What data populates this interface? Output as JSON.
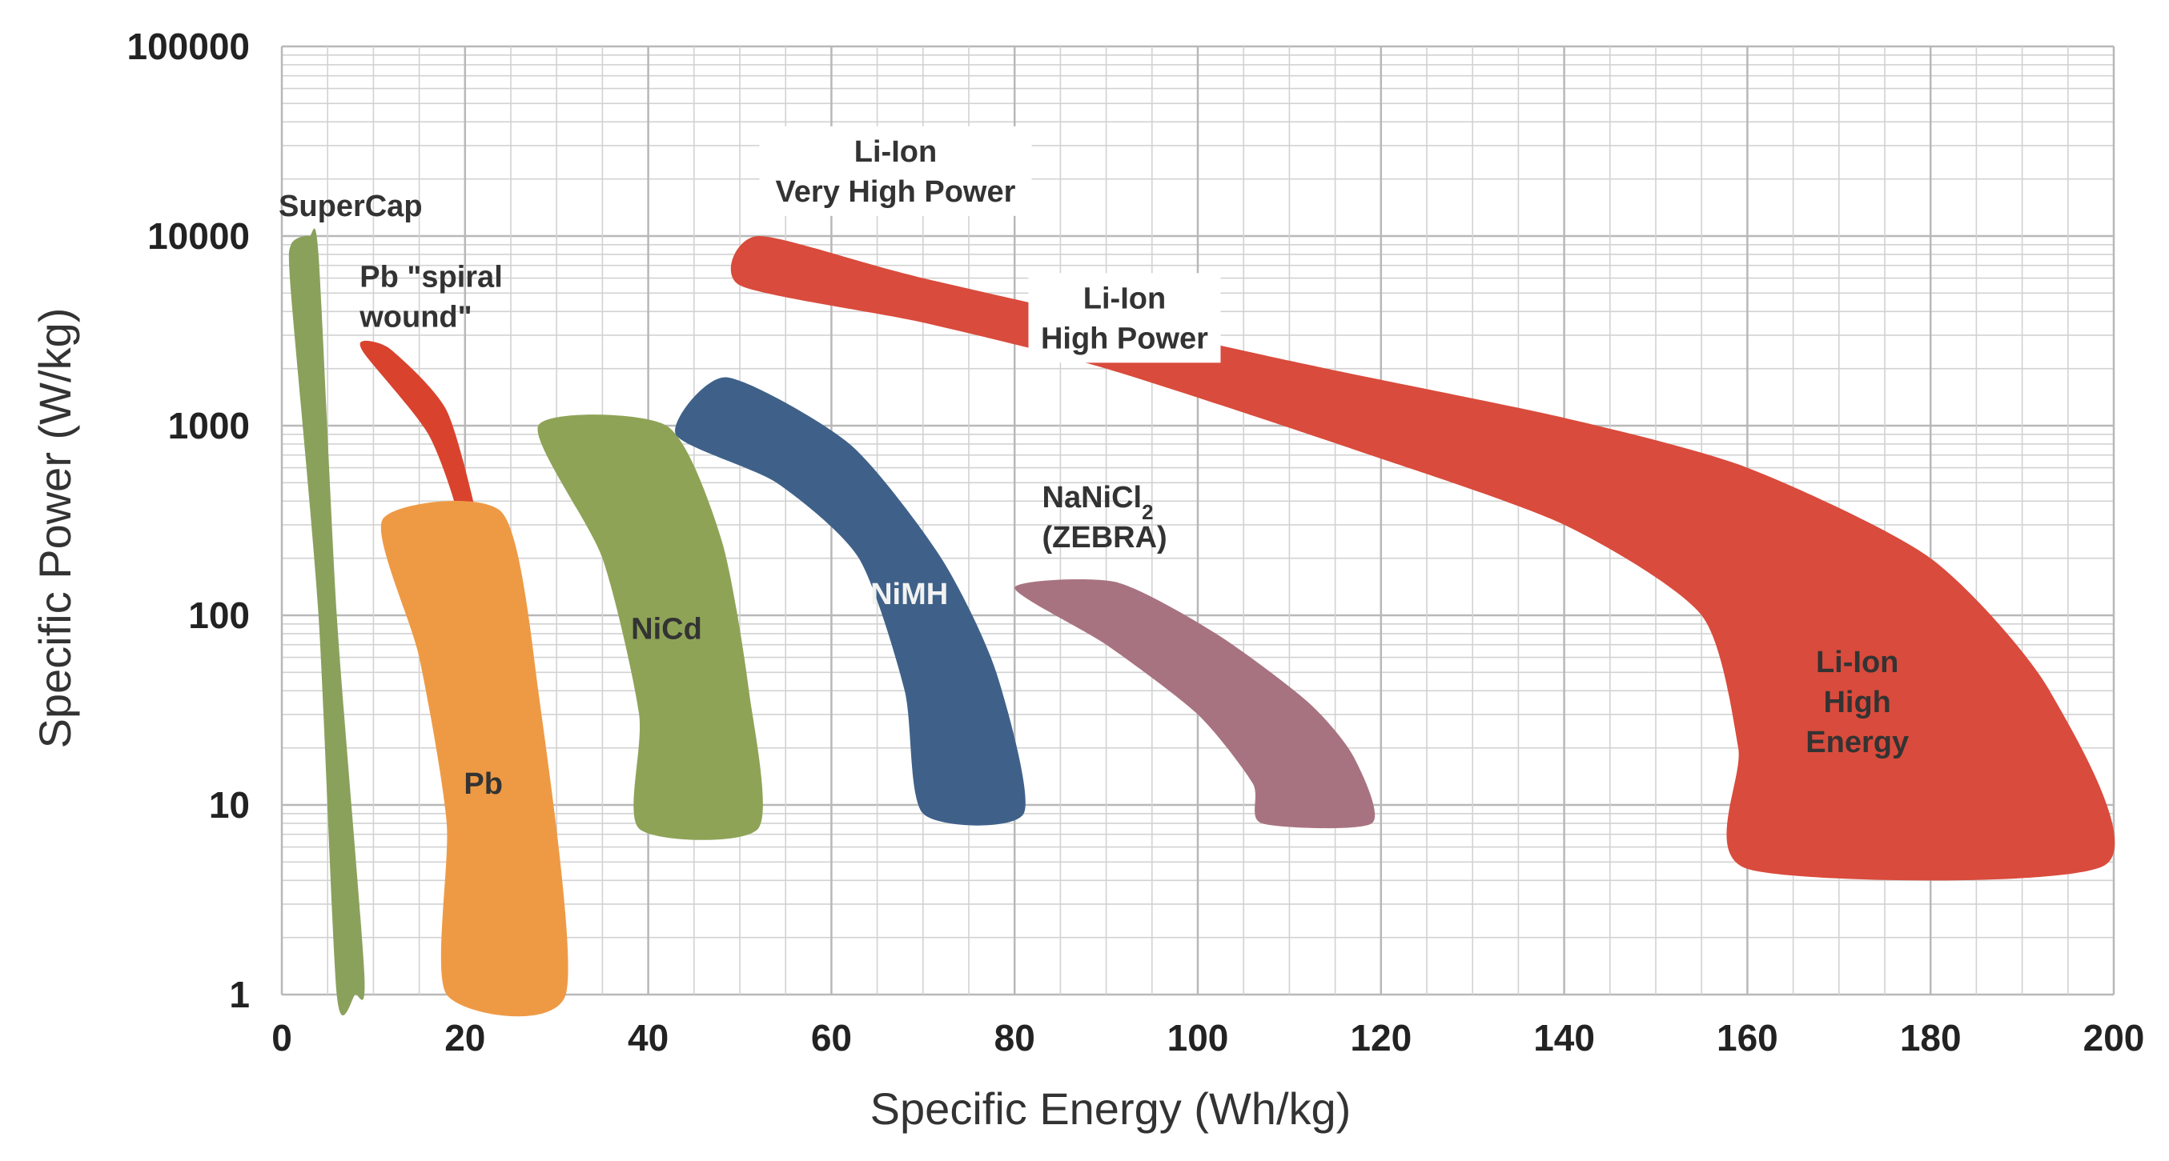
{
  "chart_data": {
    "type": "area",
    "xlabel": "Specific Energy (Wh/kg)",
    "ylabel": "Specific Power (W/kg)",
    "xlim": [
      0,
      200
    ],
    "ylim": [
      1,
      100000
    ],
    "y_scale": "log",
    "x_ticks": [
      "0",
      "20",
      "40",
      "60",
      "80",
      "100",
      "120",
      "140",
      "160",
      "180",
      "200"
    ],
    "y_ticks": [
      "1",
      "10",
      "100",
      "1000",
      "10000",
      "100000"
    ],
    "grid": true,
    "colors": {
      "supercap": "#8aa15c",
      "pb": "#ee9a45",
      "pb_spiral": "#d9432e",
      "nicd": "#8fa357",
      "nimh": "#3f6189",
      "nanicl2": "#a87380",
      "li_ion": "#d94b3c"
    },
    "regions": [
      {
        "name": "SuperCap",
        "labels": [
          "SuperCap"
        ],
        "color": "supercap",
        "polygon": [
          [
            1,
            9000
          ],
          [
            3,
            10000
          ],
          [
            4,
            8000
          ],
          [
            6,
            100
          ],
          [
            9,
            1.3
          ],
          [
            8,
            1
          ],
          [
            6,
            1
          ],
          [
            4,
            100
          ],
          [
            1,
            5000
          ]
        ]
      },
      {
        "name": "Pb \"spiral wound\"",
        "labels": [
          "Pb \"spiral",
          "wound\""
        ],
        "color": "pb_spiral",
        "polygon": [
          [
            9,
            2800
          ],
          [
            12,
            2500
          ],
          [
            18,
            1200
          ],
          [
            21.5,
            300
          ],
          [
            23,
            100
          ],
          [
            22,
            90
          ],
          [
            20,
            90
          ],
          [
            20,
            110
          ],
          [
            19.5,
            300
          ],
          [
            16,
            900
          ],
          [
            9,
            2400
          ]
        ]
      },
      {
        "name": "Pb",
        "labels": [
          "Pb"
        ],
        "color": "pb",
        "polygon": [
          [
            11,
            320
          ],
          [
            24,
            350
          ],
          [
            28,
            40
          ],
          [
            31,
            1
          ],
          [
            18,
            1
          ],
          [
            18,
            8
          ],
          [
            15,
            60
          ]
        ]
      },
      {
        "name": "NiCd",
        "labels": [
          "NiCd"
        ],
        "color": "nicd",
        "polygon": [
          [
            28,
            1000
          ],
          [
            42,
            1000
          ],
          [
            48,
            250
          ],
          [
            51,
            40
          ],
          [
            52,
            7.5
          ],
          [
            39,
            7.5
          ],
          [
            39,
            30
          ],
          [
            35,
            200
          ]
        ]
      },
      {
        "name": "NiMH",
        "labels": [
          "NiMH"
        ],
        "color": "nimh",
        "polygon": [
          [
            43,
            900
          ],
          [
            48.5,
            1800
          ],
          [
            62,
            800
          ],
          [
            72,
            200
          ],
          [
            78,
            50
          ],
          [
            81,
            9
          ],
          [
            70,
            9
          ],
          [
            68,
            40
          ],
          [
            63,
            200
          ],
          [
            54,
            500
          ]
        ]
      },
      {
        "name": "NaNiCl2 (ZEBRA)",
        "labels": [
          "NaNiCl",
          "(ZEBRA)"
        ],
        "subscript": "2",
        "color": "nanicl2",
        "polygon": [
          [
            80,
            140
          ],
          [
            91,
            150
          ],
          [
            102,
            80
          ],
          [
            112,
            35
          ],
          [
            117,
            18
          ],
          [
            119,
            8
          ],
          [
            107,
            8
          ],
          [
            106,
            13
          ],
          [
            100,
            30
          ],
          [
            90,
            70
          ]
        ]
      },
      {
        "name": "Li-Ion",
        "labels": [
          "Li-Ion",
          "High",
          "Energy"
        ],
        "color": "li_ion",
        "polygon": [
          [
            52,
            10000
          ],
          [
            70,
            6000
          ],
          [
            110,
            2200
          ],
          [
            140,
            1100
          ],
          [
            160,
            600
          ],
          [
            180,
            200
          ],
          [
            193,
            40
          ],
          [
            199,
            4.8
          ],
          [
            160,
            4.6
          ],
          [
            159,
            20
          ],
          [
            155,
            100
          ],
          [
            140,
            300
          ],
          [
            117,
            750
          ],
          [
            90,
            2000
          ],
          [
            70,
            3500
          ],
          [
            50,
            5500
          ]
        ]
      }
    ],
    "annotations": [
      {
        "lines": [
          "Li-Ion",
          "Very High Power"
        ],
        "x": 67,
        "y": 22000
      },
      {
        "lines": [
          "Li-Ion",
          "High Power"
        ],
        "x": 92,
        "y": 3700
      }
    ]
  }
}
